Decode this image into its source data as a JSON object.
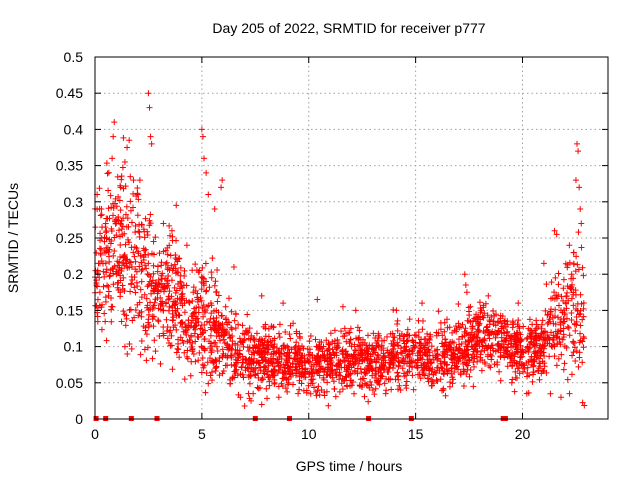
{
  "chart_data": {
    "type": "scatter",
    "title": "Day 205 of 2022, SRMTID for receiver p777",
    "xlabel": "GPS time / hours",
    "ylabel": "SRMTID / TECUs",
    "xlim": [
      0,
      24
    ],
    "ylim": [
      0,
      0.5
    ],
    "x_ticks": [
      0,
      5,
      10,
      15,
      20
    ],
    "x_tick_labels": [
      "0",
      "5",
      "10",
      "15",
      "20"
    ],
    "y_ticks": [
      0,
      0.05,
      0.1,
      0.15,
      0.2,
      0.25,
      0.3,
      0.35,
      0.4,
      0.45,
      0.5
    ],
    "y_tick_labels": [
      "0",
      "0.05",
      "0.1",
      "0.15",
      "0.2",
      "0.25",
      "0.3",
      "0.35",
      "0.4",
      "0.45",
      "0.5"
    ],
    "grid": true,
    "marker": "plus",
    "color": "#ff0000",
    "x_range_hours": [
      0,
      22.9
    ],
    "envelope": [
      {
        "x": 0.0,
        "mean": 0.22,
        "spread": 0.06
      },
      {
        "x": 0.5,
        "mean": 0.22,
        "spread": 0.07
      },
      {
        "x": 1.0,
        "mean": 0.24,
        "spread": 0.08
      },
      {
        "x": 1.5,
        "mean": 0.22,
        "spread": 0.07
      },
      {
        "x": 2.0,
        "mean": 0.22,
        "spread": 0.07
      },
      {
        "x": 2.5,
        "mean": 0.19,
        "spread": 0.06
      },
      {
        "x": 3.0,
        "mean": 0.17,
        "spread": 0.05
      },
      {
        "x": 3.5,
        "mean": 0.18,
        "spread": 0.05
      },
      {
        "x": 4.0,
        "mean": 0.15,
        "spread": 0.05
      },
      {
        "x": 4.5,
        "mean": 0.13,
        "spread": 0.04
      },
      {
        "x": 5.0,
        "mean": 0.15,
        "spread": 0.06
      },
      {
        "x": 5.5,
        "mean": 0.13,
        "spread": 0.05
      },
      {
        "x": 6.0,
        "mean": 0.11,
        "spread": 0.04
      },
      {
        "x": 7.0,
        "mean": 0.085,
        "spread": 0.03
      },
      {
        "x": 8.0,
        "mean": 0.085,
        "spread": 0.03
      },
      {
        "x": 9.0,
        "mean": 0.08,
        "spread": 0.025
      },
      {
        "x": 10.0,
        "mean": 0.075,
        "spread": 0.025
      },
      {
        "x": 11.0,
        "mean": 0.075,
        "spread": 0.025
      },
      {
        "x": 12.0,
        "mean": 0.085,
        "spread": 0.03
      },
      {
        "x": 13.0,
        "mean": 0.08,
        "spread": 0.025
      },
      {
        "x": 14.0,
        "mean": 0.085,
        "spread": 0.03
      },
      {
        "x": 15.0,
        "mean": 0.09,
        "spread": 0.03
      },
      {
        "x": 16.0,
        "mean": 0.085,
        "spread": 0.03
      },
      {
        "x": 17.0,
        "mean": 0.09,
        "spread": 0.03
      },
      {
        "x": 18.0,
        "mean": 0.115,
        "spread": 0.03
      },
      {
        "x": 19.0,
        "mean": 0.11,
        "spread": 0.03
      },
      {
        "x": 20.0,
        "mean": 0.09,
        "spread": 0.03
      },
      {
        "x": 21.0,
        "mean": 0.1,
        "spread": 0.035
      },
      {
        "x": 21.5,
        "mean": 0.13,
        "spread": 0.05
      },
      {
        "x": 22.0,
        "mean": 0.14,
        "spread": 0.06
      },
      {
        "x": 22.5,
        "mean": 0.15,
        "spread": 0.07
      },
      {
        "x": 22.9,
        "mean": 0.13,
        "spread": 0.06
      }
    ],
    "peaks": [
      {
        "x": 0.1,
        "y": 0.31
      },
      {
        "x": 0.3,
        "y": 0.29
      },
      {
        "x": 0.5,
        "y": 0.27
      },
      {
        "x": 0.8,
        "y": 0.36
      },
      {
        "x": 0.85,
        "y": 0.39
      },
      {
        "x": 0.9,
        "y": 0.41
      },
      {
        "x": 1.2,
        "y": 0.32
      },
      {
        "x": 1.4,
        "y": 0.355
      },
      {
        "x": 1.5,
        "y": 0.375
      },
      {
        "x": 1.6,
        "y": 0.385
      },
      {
        "x": 1.8,
        "y": 0.33
      },
      {
        "x": 2.0,
        "y": 0.31
      },
      {
        "x": 2.1,
        "y": 0.33
      },
      {
        "x": 2.5,
        "y": 0.45
      },
      {
        "x": 2.55,
        "y": 0.43
      },
      {
        "x": 2.6,
        "y": 0.39
      },
      {
        "x": 2.65,
        "y": 0.38
      },
      {
        "x": 3.2,
        "y": 0.27
      },
      {
        "x": 3.6,
        "y": 0.26
      },
      {
        "x": 3.8,
        "y": 0.295
      },
      {
        "x": 4.3,
        "y": 0.24
      },
      {
        "x": 5.0,
        "y": 0.4
      },
      {
        "x": 5.05,
        "y": 0.39
      },
      {
        "x": 5.1,
        "y": 0.36
      },
      {
        "x": 5.2,
        "y": 0.34
      },
      {
        "x": 5.3,
        "y": 0.31
      },
      {
        "x": 5.6,
        "y": 0.29
      },
      {
        "x": 5.9,
        "y": 0.32
      },
      {
        "x": 5.95,
        "y": 0.33
      },
      {
        "x": 6.5,
        "y": 0.21
      },
      {
        "x": 7.8,
        "y": 0.17
      },
      {
        "x": 8.8,
        "y": 0.16
      },
      {
        "x": 10.4,
        "y": 0.165
      },
      {
        "x": 11.6,
        "y": 0.155
      },
      {
        "x": 12.2,
        "y": 0.15
      },
      {
        "x": 14.1,
        "y": 0.15
      },
      {
        "x": 15.3,
        "y": 0.16
      },
      {
        "x": 17.3,
        "y": 0.2
      },
      {
        "x": 17.35,
        "y": 0.185
      },
      {
        "x": 17.4,
        "y": 0.175
      },
      {
        "x": 18.4,
        "y": 0.17
      },
      {
        "x": 19.8,
        "y": 0.16
      },
      {
        "x": 21.0,
        "y": 0.215
      },
      {
        "x": 21.5,
        "y": 0.26
      },
      {
        "x": 21.6,
        "y": 0.255
      },
      {
        "x": 22.3,
        "y": 0.2
      },
      {
        "x": 22.4,
        "y": 0.23
      },
      {
        "x": 22.5,
        "y": 0.33
      },
      {
        "x": 22.55,
        "y": 0.38
      },
      {
        "x": 22.6,
        "y": 0.37
      },
      {
        "x": 22.65,
        "y": 0.32
      },
      {
        "x": 22.7,
        "y": 0.29
      },
      {
        "x": 22.75,
        "y": 0.27
      }
    ],
    "lows": [
      {
        "x": 1.4,
        "y": 0.1
      },
      {
        "x": 3.5,
        "y": 0.12
      },
      {
        "x": 4.2,
        "y": 0.055
      },
      {
        "x": 5.4,
        "y": 0.06
      },
      {
        "x": 6.8,
        "y": 0.03
      },
      {
        "x": 7.0,
        "y": 0.018
      },
      {
        "x": 7.3,
        "y": 0.025
      },
      {
        "x": 7.4,
        "y": 0.035
      },
      {
        "x": 7.8,
        "y": 0.02
      },
      {
        "x": 8.6,
        "y": 0.03
      },
      {
        "x": 9.5,
        "y": 0.035
      },
      {
        "x": 10.6,
        "y": 0.04
      },
      {
        "x": 11.8,
        "y": 0.045
      },
      {
        "x": 13.0,
        "y": 0.04
      },
      {
        "x": 13.6,
        "y": 0.035
      },
      {
        "x": 14.3,
        "y": 0.04
      },
      {
        "x": 16.3,
        "y": 0.04
      },
      {
        "x": 17.7,
        "y": 0.045
      },
      {
        "x": 19.5,
        "y": 0.05
      },
      {
        "x": 20.2,
        "y": 0.035
      },
      {
        "x": 21.8,
        "y": 0.03
      },
      {
        "x": 22.2,
        "y": 0.035
      }
    ],
    "zero_markers_x": [
      0.05,
      0.5,
      1.7,
      2.9,
      7.5,
      9.1,
      12.8,
      14.8,
      19.1,
      19.2
    ]
  }
}
